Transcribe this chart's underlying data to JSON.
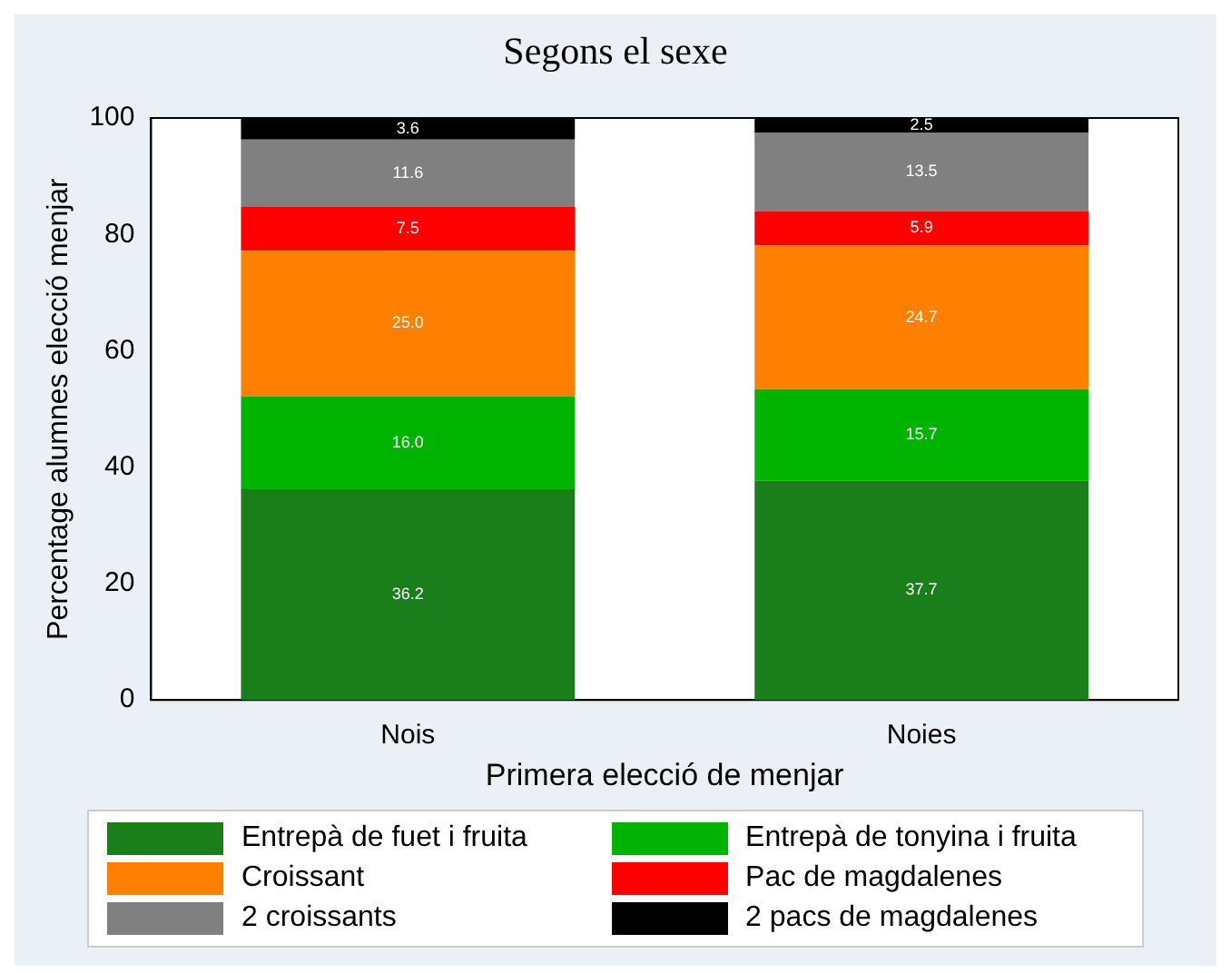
{
  "chart_data": {
    "type": "bar",
    "title": "Segons el sexe",
    "xlabel": "Primera elecció de menjar",
    "ylabel": "Percentage alumnes elecció menjar",
    "categories": [
      "Nois",
      "Noies"
    ],
    "stacked": true,
    "grid": false,
    "legend": "bottom",
    "ylim": [
      0,
      100
    ],
    "yticks": [
      0,
      20,
      40,
      60,
      80,
      100
    ],
    "series": [
      {
        "name": "Entrepà de fuet i fruita",
        "color": "#1a7f1a",
        "values": [
          36.2,
          37.7
        ],
        "value_labels": [
          "36.2",
          "37.7"
        ]
      },
      {
        "name": "Entrepà de tonyina i fruita",
        "color": "#00b300",
        "values": [
          16.0,
          15.7
        ],
        "value_labels": [
          "16.0",
          "15.7"
        ]
      },
      {
        "name": "Croissant",
        "color": "#ff8000",
        "values": [
          25.0,
          24.7
        ],
        "value_labels": [
          "25.0",
          "24.7"
        ]
      },
      {
        "name": "Pac de magdalenes",
        "color": "#ff0000",
        "values": [
          7.5,
          5.9
        ],
        "value_labels": [
          "7.5",
          "5.9"
        ]
      },
      {
        "name": "2 croissants",
        "color": "#808080",
        "values": [
          11.6,
          13.5
        ],
        "value_labels": [
          "11.6",
          "13.5"
        ]
      },
      {
        "name": "2 pacs de magdalenes",
        "color": "#000000",
        "values": [
          3.6,
          2.5
        ],
        "value_labels": [
          "3.6",
          "2.5"
        ]
      }
    ]
  }
}
